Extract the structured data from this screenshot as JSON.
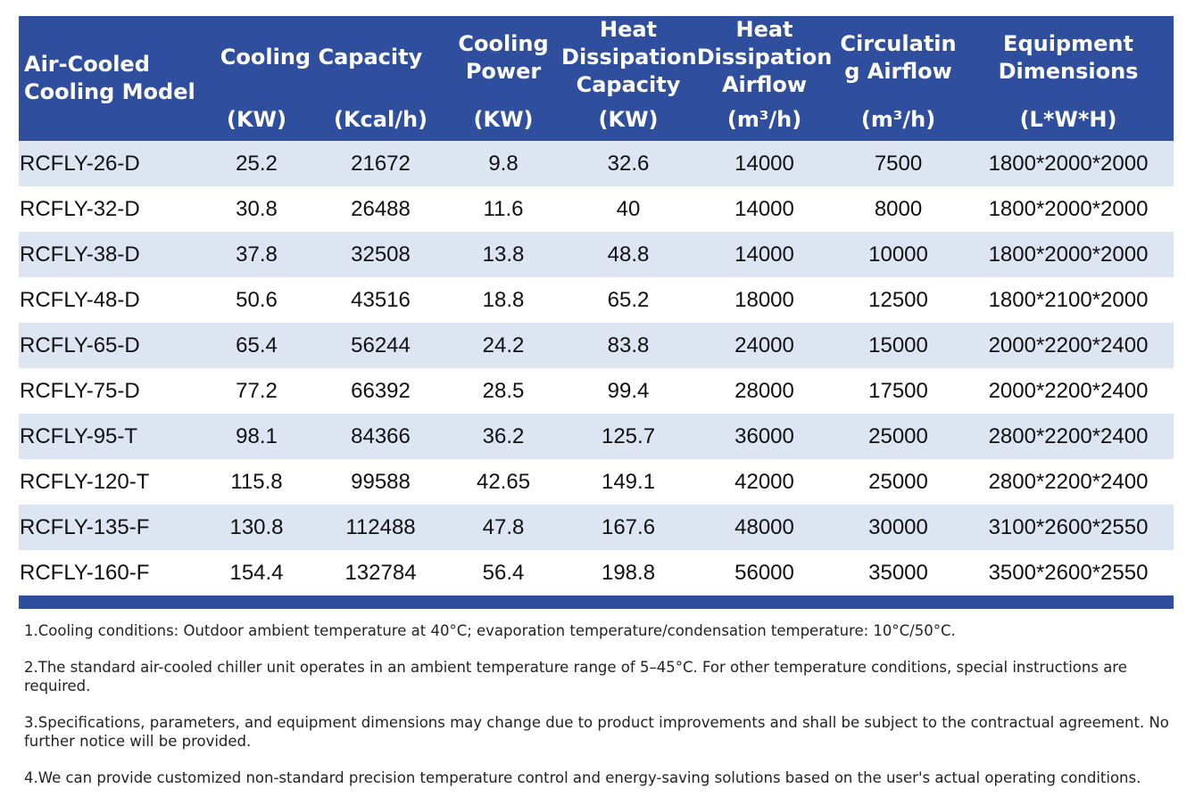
{
  "table": {
    "headers": {
      "model": "Air-Cooled Cooling Model",
      "cooling_capacity": "Cooling Capacity",
      "cooling_capacity_kw_unit": "(KW)",
      "cooling_capacity_kcal_unit": "(Kcal/h)",
      "cooling_power": "Cooling Power",
      "cooling_power_unit": "(KW)",
      "heat_dissipation_capacity": "Heat Dissipation Capacity",
      "heat_dissipation_capacity_unit": "(KW)",
      "heat_dissipation_airflow": "Heat Dissipation Airflow",
      "heat_dissipation_airflow_unit": "(m³/h)",
      "circulating_airflow": "Circulatin g Airflow",
      "circulating_airflow_unit": "(m³/h)",
      "equipment_dimensions": "Equipment Dimensions",
      "equipment_dimensions_unit": "(L*W*H)"
    },
    "rows": [
      [
        "RCFLY-26-D",
        "25.2",
        "21672",
        "9.8",
        "32.6",
        "14000",
        "7500",
        "1800*2000*2000"
      ],
      [
        "RCFLY-32-D",
        "30.8",
        "26488",
        "11.6",
        "40",
        "14000",
        "8000",
        "1800*2000*2000"
      ],
      [
        "RCFLY-38-D",
        "37.8",
        "32508",
        "13.8",
        "48.8",
        "14000",
        "10000",
        "1800*2000*2000"
      ],
      [
        "RCFLY-48-D",
        "50.6",
        "43516",
        "18.8",
        "65.2",
        "18000",
        "12500",
        "1800*2100*2000"
      ],
      [
        "RCFLY-65-D",
        "65.4",
        "56244",
        "24.2",
        "83.8",
        "24000",
        "15000",
        "2000*2200*2400"
      ],
      [
        "RCFLY-75-D",
        "77.2",
        "66392",
        "28.5",
        "99.4",
        "28000",
        "17500",
        "2000*2200*2400"
      ],
      [
        "RCFLY-95-T",
        "98.1",
        "84366",
        "36.2",
        "125.7",
        "36000",
        "25000",
        "2800*2200*2400"
      ],
      [
        "RCFLY-120-T",
        "115.8",
        "99588",
        "42.65",
        "149.1",
        "42000",
        "25000",
        "2800*2200*2400"
      ],
      [
        "RCFLY-135-F",
        "130.8",
        "112488",
        "47.8",
        "167.6",
        "48000",
        "30000",
        "3100*2600*2550"
      ],
      [
        "RCFLY-160-F",
        "154.4",
        "132784",
        "56.4",
        "198.8",
        "56000",
        "35000",
        "3500*2600*2550"
      ]
    ]
  },
  "notes": [
    "1.Cooling conditions: Outdoor ambient temperature at 40°C; evaporation temperature/condensation temperature: 10°C/50°C.",
    "2.The standard air-cooled chiller unit operates in an ambient temperature range of 5–45°C. For other temperature conditions, special instructions are required.",
    "3.Specifications, parameters, and equipment dimensions may change due to product improvements and shall be subject to the contractual agreement. No further notice will be provided.",
    "4.We can provide customized non-standard precision temperature control and energy-saving solutions based on the user's actual operating conditions."
  ],
  "colors": {
    "header_bg": "#2f4f9e",
    "stripe_bg": "#dde4f2"
  }
}
